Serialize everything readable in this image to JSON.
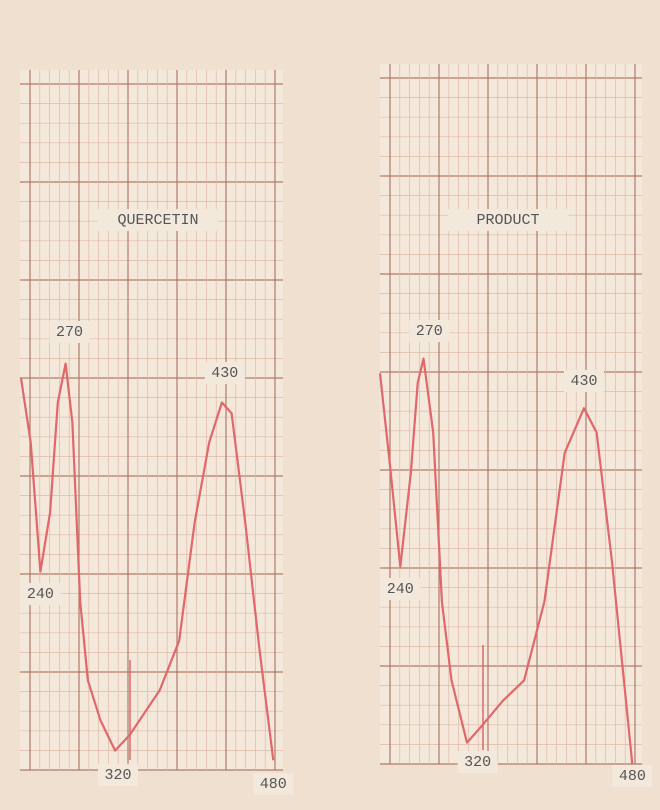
{
  "chart_data": [
    {
      "type": "line",
      "title": "QUERCETIN",
      "color": "#e0676a",
      "x": [
        220,
        230,
        240,
        250,
        258,
        266,
        273,
        281,
        289,
        302,
        317,
        332,
        363,
        383,
        399,
        414,
        427,
        437,
        451,
        466,
        480
      ],
      "values": [
        4.03,
        3.37,
        2.04,
        2.65,
        3.78,
        4.18,
        3.57,
        1.73,
        0.92,
        0.51,
        0.2,
        0.36,
        0.82,
        1.33,
        2.55,
        3.37,
        3.78,
        3.67,
        2.55,
        1.22,
        0.1
      ],
      "xlim": [
        219,
        490
      ],
      "ylim": [
        0,
        7.2
      ],
      "annotations": [
        {
          "value": 270,
          "label": "270"
        },
        {
          "value": 430,
          "label": "430"
        },
        {
          "value": 240,
          "label": "240"
        },
        {
          "value": 320,
          "label": "320"
        },
        {
          "value": 480,
          "label": "480"
        }
      ]
    },
    {
      "type": "line",
      "title": "PRODUCT",
      "color": "#e0676a",
      "x": [
        219,
        229,
        240,
        251,
        258,
        264,
        274,
        283,
        293,
        309,
        325,
        346,
        368,
        389,
        410,
        430,
        443,
        459,
        480
      ],
      "values": [
        4.02,
        3.1,
        2.03,
        3.0,
        3.92,
        4.17,
        3.41,
        1.67,
        0.86,
        0.22,
        0.4,
        0.65,
        0.86,
        1.67,
        3.2,
        3.66,
        3.41,
        2.08,
        0
      ],
      "xlim": [
        219,
        490
      ],
      "ylim": [
        0,
        7.2
      ],
      "annotations": [
        {
          "value": 270,
          "label": "270"
        },
        {
          "value": 430,
          "label": "430"
        },
        {
          "value": 240,
          "label": "240"
        },
        {
          "value": 320,
          "label": "320"
        },
        {
          "value": 480,
          "label": "480"
        }
      ]
    }
  ]
}
